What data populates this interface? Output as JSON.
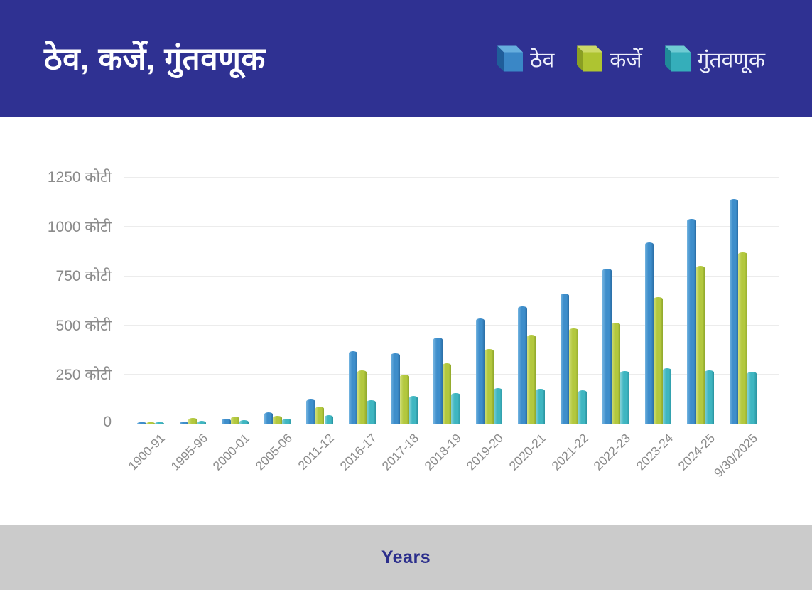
{
  "header": {
    "title": "ठेव, कर्जे, गुंतवणूक"
  },
  "legend": {
    "items": [
      {
        "label": "ठेव",
        "front": "#3a87c6",
        "top": "#66aede",
        "side": "#1f5e9a"
      },
      {
        "label": "कर्जे",
        "front": "#aec431",
        "top": "#ccd968",
        "side": "#8a9f22"
      },
      {
        "label": "गुंतवणूक",
        "front": "#35aeba",
        "top": "#6fcbd3",
        "side": "#1f8b98"
      }
    ]
  },
  "footer": {
    "xlabel": "Years"
  },
  "chart_data": {
    "type": "bar",
    "title": "ठेव, कर्जे, गुंतवणूक",
    "xlabel": "Years",
    "ylabel": "",
    "unit": "कोटी",
    "grid": true,
    "legend_position": "top-right",
    "ylim": [
      0,
      1250
    ],
    "y_tick_values": [
      0,
      250,
      500,
      750,
      1000,
      1250
    ],
    "y_tick_labels": [
      "0",
      "250 कोटी",
      "500 कोटी",
      "750 कोटी",
      "1000 कोटी",
      "1250 कोटी"
    ],
    "categories": [
      "1900-91",
      "1995-96",
      "2000-01",
      "2005-06",
      "2011-12",
      "2016-17",
      "2017-18",
      "2018-19",
      "2019-20",
      "2020-21",
      "2021-22",
      "2022-23",
      "2023-24",
      "2024-25",
      "9/30/2025"
    ],
    "series": [
      {
        "name": "ठेव",
        "color_light": "#74b4e0",
        "color_main": "#3e8ecb",
        "color_dark": "#2a6ea6",
        "values": [
          7,
          13,
          27,
          58,
          122,
          368,
          358,
          438,
          533,
          595,
          660,
          787,
          920,
          1040,
          1140
        ]
      },
      {
        "name": "कर्जे",
        "color_light": "#d2df7d",
        "color_main": "#b3c83e",
        "color_dark": "#90a72b",
        "values": [
          9,
          30,
          36,
          39,
          87,
          270,
          248,
          307,
          379,
          452,
          483,
          513,
          641,
          799,
          871
        ]
      },
      {
        "name": "गुंतवणूक",
        "color_light": "#85d2d9",
        "color_main": "#3fb6c1",
        "color_dark": "#2a93a0",
        "values": [
          8,
          16,
          19,
          25,
          45,
          121,
          141,
          155,
          182,
          179,
          170,
          269,
          283,
          272,
          263
        ]
      }
    ]
  }
}
